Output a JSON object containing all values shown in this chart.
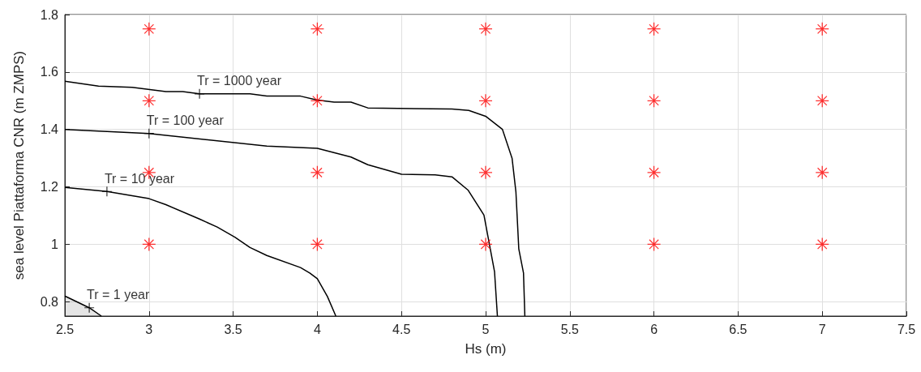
{
  "chart_data": {
    "type": "line",
    "xlabel": "Hs (m)",
    "ylabel": "sea level Piattaforma CNR (m ZMPS)",
    "xlim": [
      2.5,
      7.5
    ],
    "xticks": [
      2.5,
      3,
      3.5,
      4,
      4.5,
      5,
      5.5,
      6,
      6.5,
      7,
      7.5
    ],
    "ylim": [
      0.75,
      1.8
    ],
    "yticks": [
      0.8,
      1,
      1.2,
      1.4,
      1.6,
      1.8
    ],
    "grid": true,
    "series": [
      {
        "type": "area",
        "color": "#000000",
        "x": [
          2.5,
          2.645,
          2.717
        ],
        "values": [
          0.82,
          0.779,
          0.75
        ]
      },
      {
        "color": "#000000",
        "x": [
          2.5,
          2.75,
          3.0,
          3.1,
          3.3,
          3.405,
          3.51,
          3.6,
          3.7,
          3.9,
          3.955,
          4.0,
          4.06,
          4.11
        ],
        "values": [
          1.198,
          1.184,
          1.159,
          1.138,
          1.088,
          1.06,
          1.025,
          0.989,
          0.961,
          0.919,
          0.9,
          0.88,
          0.818,
          0.75
        ]
      },
      {
        "color": "#000000",
        "x": [
          2.5,
          3.0,
          3.7,
          4.0,
          4.2,
          4.3,
          4.5,
          4.7,
          4.8,
          4.895,
          4.99,
          5.053,
          5.07
        ],
        "values": [
          1.4,
          1.386,
          1.342,
          1.334,
          1.304,
          1.277,
          1.244,
          1.242,
          1.235,
          1.189,
          1.102,
          0.904,
          0.75
        ]
      },
      {
        "color": "#000000",
        "x": [
          2.5,
          2.7,
          2.9,
          3.1,
          3.2,
          3.3,
          3.6,
          3.7,
          3.9,
          4.0,
          4.1,
          4.2,
          4.3,
          4.8,
          4.9,
          5.0,
          5.1,
          5.157,
          5.18,
          5.197,
          5.225,
          5.233
        ],
        "values": [
          1.568,
          1.551,
          1.547,
          1.532,
          1.532,
          1.524,
          1.524,
          1.516,
          1.516,
          1.502,
          1.495,
          1.495,
          1.475,
          1.471,
          1.466,
          1.446,
          1.4,
          1.3,
          1.182,
          0.984,
          0.9,
          0.75
        ]
      },
      {
        "type": "scatter",
        "color": "#ff0000",
        "marker": "star",
        "x": [
          3,
          4,
          5,
          6,
          7,
          3,
          4,
          5,
          6,
          7,
          3,
          4,
          5,
          6,
          7,
          3,
          4,
          5,
          6,
          7
        ],
        "values": [
          1.75,
          1.75,
          1.75,
          1.75,
          1.75,
          1.5,
          1.5,
          1.5,
          1.5,
          1.5,
          1.25,
          1.25,
          1.25,
          1.25,
          1.25,
          1,
          1,
          1,
          1,
          1
        ]
      }
    ],
    "annotations": [
      {
        "text": "Tr = 1 year",
        "x": 2.645,
        "y": 0.779
      },
      {
        "text": "Tr = 10 year",
        "x": 2.75,
        "y": 1.184
      },
      {
        "text": "Tr = 100 year",
        "x": 3.0,
        "y": 1.386
      },
      {
        "text": "Tr = 1000 year",
        "x": 3.3,
        "y": 1.524
      }
    ]
  }
}
